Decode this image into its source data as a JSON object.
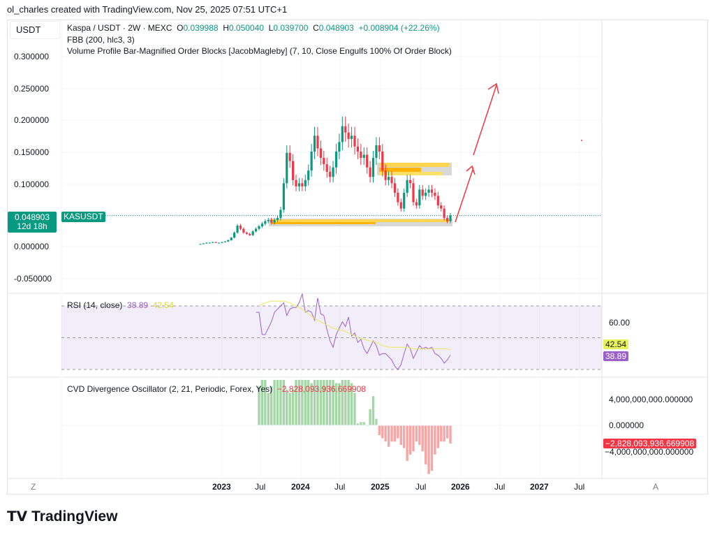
{
  "credit": "ol_charles created with TradingView.com, Nov 25, 2025 07:51 UTC+1",
  "currency": "USDT",
  "legend": {
    "symbol": "Kaspa / USDT · 2W · MEXC",
    "o_label": "O",
    "o": "0.039988",
    "h_label": "H",
    "h": "0.050040",
    "l_label": "L",
    "l": "0.039700",
    "c_label": "C",
    "c": "0.048903",
    "change": "+0.008904 (+22.26%)",
    "fbb": "FBB (200, hlc3, 3)",
    "vp": "Volume Profile Bar-Magnified Order Blocks [JacobMagleby] (7, 10, Close Engulfs 100% Of Order Block)"
  },
  "price_tag": {
    "value": "0.048903",
    "countdown": "12d 18h",
    "ticker": "KASUSDT"
  },
  "price_axis": [
    "0.300000",
    "0.250000",
    "0.200000",
    "0.150000",
    "0.100000",
    "0.000000",
    "-0.050000"
  ],
  "time_axis": [
    "2023",
    "Jul",
    "2024",
    "Jul",
    "2025",
    "Jul",
    "2026",
    "Jul",
    "2027",
    "Jul"
  ],
  "axis_left": "Z",
  "axis_right": "A",
  "rsi": {
    "title": "RSI (14, close)",
    "value": "38.89",
    "signal": "42.54",
    "axis_label": "60.00"
  },
  "cvd": {
    "title": "CVD Divergence Oscillator (2, 21, Periodic, Forex, Yes)",
    "value": "−2,828,093,936.669908",
    "axis": [
      "4,000,000,000.000000",
      "0.000000",
      "−4,000,000,000.000000"
    ]
  },
  "logo": "TradingView",
  "colors": {
    "up": "#089981",
    "down": "#f23645",
    "rsi": "#9c5fc9",
    "signal": "#e8e85a",
    "cvd_up": "#a5d6a7",
    "cvd_down": "#f7a5a5",
    "ob": "#ffc400"
  },
  "chart_data": {
    "type": "candlestick",
    "closes": [
      0.004,
      0.005,
      0.006,
      0.006,
      0.007,
      0.006,
      0.006,
      0.007,
      0.008,
      0.01,
      0.014,
      0.022,
      0.033,
      0.028,
      0.022,
      0.02,
      0.018,
      0.024,
      0.028,
      0.032,
      0.036,
      0.04,
      0.042,
      0.038,
      0.042,
      0.045,
      0.058,
      0.1,
      0.148,
      0.135,
      0.105,
      0.095,
      0.1,
      0.095,
      0.105,
      0.12,
      0.15,
      0.175,
      0.155,
      0.14,
      0.13,
      0.118,
      0.11,
      0.125,
      0.15,
      0.165,
      0.19,
      0.18,
      0.17,
      0.175,
      0.158,
      0.15,
      0.14,
      0.145,
      0.125,
      0.11,
      0.14,
      0.16,
      0.15,
      0.12,
      0.105,
      0.11,
      0.1,
      0.085,
      0.07,
      0.06,
      0.085,
      0.105,
      0.1,
      0.07,
      0.065,
      0.09,
      0.08,
      0.085,
      0.09,
      0.085,
      0.08,
      0.065,
      0.06,
      0.045,
      0.04,
      0.049
    ],
    "rsi": [
      66,
      66,
      52,
      52,
      56,
      60,
      66,
      68,
      70,
      72,
      64,
      68,
      69,
      69,
      72,
      80,
      66,
      67,
      66,
      61,
      75,
      65,
      64,
      55,
      48,
      44,
      52,
      56,
      60,
      57,
      63,
      51,
      53,
      47,
      49,
      43,
      40,
      44,
      48,
      45,
      39,
      40,
      40,
      38,
      36,
      32,
      30,
      33,
      40,
      46,
      43,
      37,
      41,
      45,
      43,
      44,
      43,
      44,
      40,
      39,
      37,
      34,
      36,
      39
    ],
    "rsi_signal": [
      70,
      72,
      73,
      73,
      73,
      72,
      70,
      68,
      65,
      62,
      60,
      58,
      56,
      55,
      54,
      52,
      50,
      49,
      48,
      47,
      45,
      44,
      44,
      44,
      44,
      43,
      43,
      43,
      43,
      43,
      43,
      42.5
    ],
    "cvd_billions": [
      6,
      7,
      7,
      5,
      6,
      7,
      7,
      7,
      7,
      5.5,
      5,
      5.5,
      7,
      7,
      7,
      7,
      7,
      6.5,
      7,
      7,
      7,
      7,
      7,
      7,
      7,
      6.5,
      6.5,
      7,
      7,
      7,
      6.5,
      5,
      0.3,
      0.5,
      0.5,
      0,
      2.5,
      4.5,
      1,
      -1.5,
      -2,
      -2.5,
      -3.3,
      -2.5,
      -2.5,
      -2,
      -3,
      -3.5,
      -5.5,
      -4.5,
      -4,
      -2.5,
      -3,
      -4,
      -6,
      -7.5,
      -7,
      -4.5,
      -3.5,
      -2.5,
      -2.5,
      -2,
      -2.8
    ]
  }
}
